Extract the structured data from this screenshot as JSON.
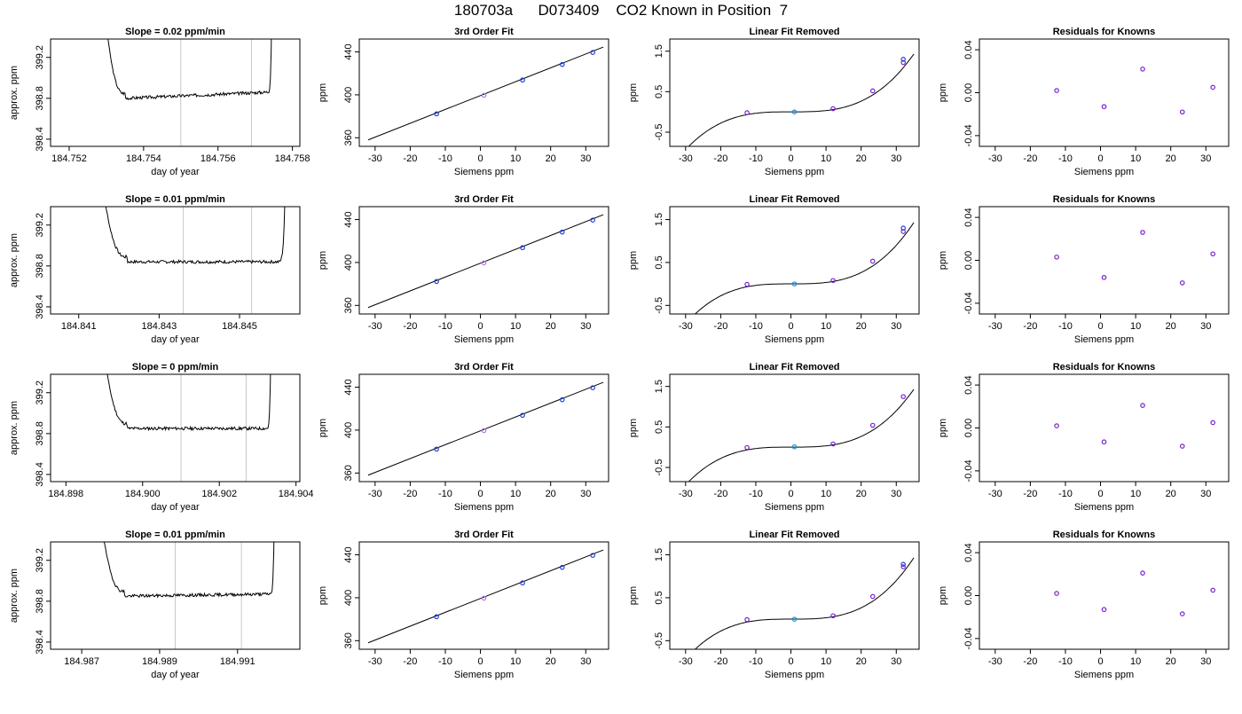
{
  "page": {
    "title": "180703a      D073409    CO2 Known in Position  7"
  },
  "style": {
    "line_color": "#000000",
    "gray_line_color": "#c8c8c8",
    "point_blue": "#1f3fd6",
    "point_purple": "#7a1fd0",
    "point_cyan": "#1f8fd6",
    "point_violet": "#b07ae0"
  },
  "chart_data": [
    {
      "type": "line",
      "title": "Slope =  0.02  ppm/min",
      "xlabel": "day of year",
      "ylabel": "approx. ppm",
      "xlim": [
        184.7515,
        184.7582
      ],
      "ylim": [
        398.33,
        399.38
      ],
      "xticks": [
        "184.752",
        "184.754",
        "184.756",
        "184.758"
      ],
      "xtick_values": [
        184.752,
        184.754,
        184.756,
        184.758
      ],
      "yticks": [
        "398.4",
        "398.8",
        "399.2"
      ],
      "ytick_values": [
        398.4,
        398.8,
        399.2
      ],
      "trace": {
        "x_start": 184.7529,
        "x_end": 184.75745,
        "flat_start": 184.7535,
        "flat_end": 184.7573,
        "y_start": 398.8,
        "y_end": 398.86,
        "seed": 3
      },
      "vlines": [
        184.755,
        184.7569
      ]
    },
    {
      "type": "scatter",
      "title": "3rd Order Fit",
      "xlabel": "Siemens ppm",
      "ylabel": "ppm",
      "xlim": [
        -34.5,
        36.5
      ],
      "ylim": [
        352,
        452
      ],
      "xticks": [
        "-30",
        "-20",
        "-10",
        "0",
        "10",
        "20",
        "30"
      ],
      "xtick_values": [
        -30,
        -20,
        -10,
        0,
        10,
        20,
        30
      ],
      "yticks": [
        "360",
        "400",
        "440"
      ],
      "ytick_values": [
        360,
        400,
        440
      ],
      "line": [
        [
          -32,
          358
        ],
        [
          35,
          444.5
        ]
      ],
      "points": [
        {
          "x": -12.5,
          "y": 382.3,
          "color": "blue"
        },
        {
          "x": 1.0,
          "y": 399.6,
          "color": "violet"
        },
        {
          "x": 12.0,
          "y": 413.8,
          "color": "blue"
        },
        {
          "x": 23.3,
          "y": 428.3,
          "color": "blue"
        },
        {
          "x": 32.0,
          "y": 439.5,
          "color": "blue"
        }
      ]
    },
    {
      "type": "scatter",
      "title": "Linear Fit Removed",
      "xlabel": "Siemens ppm",
      "ylabel": "ppm",
      "xlim": [
        -34.5,
        36.5
      ],
      "ylim": [
        -0.85,
        1.8
      ],
      "xticks": [
        "-30",
        "-20",
        "-10",
        "0",
        "10",
        "20",
        "30"
      ],
      "xtick_values": [
        -30,
        -20,
        -10,
        0,
        10,
        20,
        30
      ],
      "yticks": [
        "-0.5",
        "0.5",
        "1.5"
      ],
      "ytick_values": [
        -0.5,
        0.5,
        1.5
      ],
      "curve": {
        "x_from": -32,
        "x_to": 35,
        "coef": [
          0.002,
          0.0045,
          -2e-05,
          3.39e-05
        ]
      },
      "points": [
        {
          "x": -12.5,
          "y": -0.02,
          "color": "purple"
        },
        {
          "x": 1.0,
          "y": 0.0,
          "color": "cyan"
        },
        {
          "x": 12.0,
          "y": 0.08,
          "color": "purple"
        },
        {
          "x": 23.3,
          "y": 0.52,
          "color": "purple"
        },
        {
          "x": 32.0,
          "y": 1.22,
          "color": "purple"
        },
        {
          "x": 32.0,
          "y": 1.3,
          "color": "blue"
        }
      ]
    },
    {
      "type": "scatter",
      "title": "Residuals for Knowns",
      "xlabel": "Siemens ppm",
      "ylabel": "ppm",
      "xlim": [
        -34.5,
        36.5
      ],
      "ylim": [
        -0.05,
        0.05
      ],
      "xticks": [
        "-30",
        "-20",
        "-10",
        "0",
        "10",
        "20",
        "30"
      ],
      "xtick_values": [
        -30,
        -20,
        -10,
        0,
        10,
        20,
        30
      ],
      "yticks": [
        "-0.04",
        "0.00",
        "0.04"
      ],
      "ytick_values": [
        -0.04,
        0.0,
        0.04
      ],
      "points": [
        {
          "x": -12.5,
          "y": 0.002,
          "color": "purple"
        },
        {
          "x": 1.0,
          "y": -0.013,
          "color": "purple"
        },
        {
          "x": 12.0,
          "y": 0.022,
          "color": "purple"
        },
        {
          "x": 23.3,
          "y": -0.018,
          "color": "purple"
        },
        {
          "x": 32.0,
          "y": 0.005,
          "color": "purple"
        }
      ]
    },
    {
      "type": "line",
      "title": "Slope =  0.01  ppm/min",
      "xlabel": "day of year",
      "ylabel": "approx. ppm",
      "xlim": [
        184.8403,
        184.8465
      ],
      "ylim": [
        398.33,
        399.38
      ],
      "xticks": [
        "184.841",
        "184.843",
        "184.845"
      ],
      "xtick_values": [
        184.841,
        184.843,
        184.845
      ],
      "yticks": [
        "398.4",
        "398.8",
        "399.2"
      ],
      "ytick_values": [
        398.4,
        398.8,
        399.2
      ],
      "trace": {
        "x_start": 184.8415,
        "x_end": 184.84615,
        "flat_start": 184.8422,
        "flat_end": 184.8459,
        "y_start": 398.84,
        "y_end": 398.84,
        "seed": 7
      },
      "vlines": [
        184.8436,
        184.8453
      ]
    },
    {
      "type": "scatter",
      "title": "3rd Order Fit",
      "xlabel": "Siemens ppm",
      "ylabel": "ppm",
      "xlim": [
        -34.5,
        36.5
      ],
      "ylim": [
        352,
        452
      ],
      "xticks": [
        "-30",
        "-20",
        "-10",
        "0",
        "10",
        "20",
        "30"
      ],
      "xtick_values": [
        -30,
        -20,
        -10,
        0,
        10,
        20,
        30
      ],
      "yticks": [
        "360",
        "400",
        "440"
      ],
      "ytick_values": [
        360,
        400,
        440
      ],
      "line": [
        [
          -32,
          358
        ],
        [
          35,
          444.5
        ]
      ],
      "points": [
        {
          "x": -12.5,
          "y": 382.3,
          "color": "blue"
        },
        {
          "x": 1.0,
          "y": 399.6,
          "color": "violet"
        },
        {
          "x": 12.0,
          "y": 413.8,
          "color": "blue"
        },
        {
          "x": 23.3,
          "y": 428.3,
          "color": "blue"
        },
        {
          "x": 32.0,
          "y": 439.5,
          "color": "blue"
        }
      ]
    },
    {
      "type": "scatter",
      "title": "Linear Fit Removed",
      "xlabel": "Siemens ppm",
      "ylabel": "ppm",
      "xlim": [
        -34.5,
        36.5
      ],
      "ylim": [
        -0.7,
        1.8
      ],
      "xticks": [
        "-30",
        "-20",
        "-10",
        "0",
        "10",
        "20",
        "30"
      ],
      "xtick_values": [
        -30,
        -20,
        -10,
        0,
        10,
        20,
        30
      ],
      "yticks": [
        "-0.5",
        "0.5",
        "1.5"
      ],
      "ytick_values": [
        -0.5,
        0.5,
        1.5
      ],
      "curve": {
        "x_from": -32,
        "x_to": 35,
        "coef": [
          0.002,
          0.0045,
          -2e-05,
          3.39e-05
        ]
      },
      "points": [
        {
          "x": -12.5,
          "y": -0.01,
          "color": "purple"
        },
        {
          "x": 1.0,
          "y": 0.0,
          "color": "cyan"
        },
        {
          "x": 12.0,
          "y": 0.08,
          "color": "purple"
        },
        {
          "x": 23.3,
          "y": 0.53,
          "color": "purple"
        },
        {
          "x": 32.0,
          "y": 1.22,
          "color": "purple"
        },
        {
          "x": 32.0,
          "y": 1.3,
          "color": "blue"
        }
      ]
    },
    {
      "type": "scatter",
      "title": "Residuals for Knowns",
      "xlabel": "Siemens ppm",
      "ylabel": "ppm",
      "xlim": [
        -34.5,
        36.5
      ],
      "ylim": [
        -0.05,
        0.05
      ],
      "xticks": [
        "-30",
        "-20",
        "-10",
        "0",
        "10",
        "20",
        "30"
      ],
      "xtick_values": [
        -30,
        -20,
        -10,
        0,
        10,
        20,
        30
      ],
      "yticks": [
        "-0.04",
        "0.00",
        "0.04"
      ],
      "ytick_values": [
        -0.04,
        0.0,
        0.04
      ],
      "points": [
        {
          "x": -12.5,
          "y": 0.003,
          "color": "purple"
        },
        {
          "x": 1.0,
          "y": -0.016,
          "color": "purple"
        },
        {
          "x": 12.0,
          "y": 0.026,
          "color": "purple"
        },
        {
          "x": 23.3,
          "y": -0.021,
          "color": "purple"
        },
        {
          "x": 32.0,
          "y": 0.006,
          "color": "purple"
        }
      ]
    },
    {
      "type": "line",
      "title": "Slope =  0  ppm/min",
      "xlabel": "day of year",
      "ylabel": "approx. ppm",
      "xlim": [
        184.8976,
        184.9041
      ],
      "ylim": [
        398.33,
        399.38
      ],
      "xticks": [
        "184.898",
        "184.900",
        "184.902",
        "184.904"
      ],
      "xtick_values": [
        184.898,
        184.9,
        184.902,
        184.904
      ],
      "yticks": [
        "398.4",
        "398.8",
        "399.2"
      ],
      "ytick_values": [
        398.4,
        398.8,
        399.2
      ],
      "trace": {
        "x_start": 184.8989,
        "x_end": 184.90335,
        "flat_start": 184.8996,
        "flat_end": 184.9032,
        "y_start": 398.85,
        "y_end": 398.85,
        "seed": 11
      },
      "vlines": [
        184.901,
        184.9027
      ]
    },
    {
      "type": "scatter",
      "title": "3rd Order Fit",
      "xlabel": "Siemens ppm",
      "ylabel": "ppm",
      "xlim": [
        -34.5,
        36.5
      ],
      "ylim": [
        352,
        452
      ],
      "xticks": [
        "-30",
        "-20",
        "-10",
        "0",
        "10",
        "20",
        "30"
      ],
      "xtick_values": [
        -30,
        -20,
        -10,
        0,
        10,
        20,
        30
      ],
      "yticks": [
        "360",
        "400",
        "440"
      ],
      "ytick_values": [
        360,
        400,
        440
      ],
      "line": [
        [
          -32,
          358
        ],
        [
          35,
          444.5
        ]
      ],
      "points": [
        {
          "x": -12.5,
          "y": 382.3,
          "color": "blue"
        },
        {
          "x": 1.0,
          "y": 399.6,
          "color": "violet"
        },
        {
          "x": 12.0,
          "y": 413.8,
          "color": "blue"
        },
        {
          "x": 23.3,
          "y": 428.3,
          "color": "blue"
        },
        {
          "x": 32.0,
          "y": 439.5,
          "color": "blue"
        }
      ]
    },
    {
      "type": "scatter",
      "title": "Linear Fit Removed",
      "xlabel": "Siemens ppm",
      "ylabel": "ppm",
      "xlim": [
        -34.5,
        36.5
      ],
      "ylim": [
        -0.85,
        1.8
      ],
      "xticks": [
        "-30",
        "-20",
        "-10",
        "0",
        "10",
        "20",
        "30"
      ],
      "xtick_values": [
        -30,
        -20,
        -10,
        0,
        10,
        20,
        30
      ],
      "yticks": [
        "-0.5",
        "0.5",
        "1.5"
      ],
      "ytick_values": [
        -0.5,
        0.5,
        1.5
      ],
      "curve": {
        "x_from": -32,
        "x_to": 35,
        "coef": [
          0.002,
          0.0045,
          -2e-05,
          3.39e-05
        ]
      },
      "points": [
        {
          "x": -12.5,
          "y": -0.01,
          "color": "purple"
        },
        {
          "x": 1.0,
          "y": 0.01,
          "color": "cyan"
        },
        {
          "x": 12.0,
          "y": 0.08,
          "color": "purple"
        },
        {
          "x": 23.3,
          "y": 0.54,
          "color": "purple"
        },
        {
          "x": 32.0,
          "y": 1.25,
          "color": "purple"
        }
      ]
    },
    {
      "type": "scatter",
      "title": "Residuals for Knowns",
      "xlabel": "Siemens ppm",
      "ylabel": "ppm",
      "xlim": [
        -34.5,
        36.5
      ],
      "ylim": [
        -0.05,
        0.05
      ],
      "xticks": [
        "-30",
        "-20",
        "-10",
        "0",
        "10",
        "20",
        "30"
      ],
      "xtick_values": [
        -30,
        -20,
        -10,
        0,
        10,
        20,
        30
      ],
      "yticks": [
        "-0.04",
        "0.00",
        "0.04"
      ],
      "ytick_values": [
        -0.04,
        0.0,
        0.04
      ],
      "points": [
        {
          "x": -12.5,
          "y": 0.002,
          "color": "purple"
        },
        {
          "x": 1.0,
          "y": -0.013,
          "color": "purple"
        },
        {
          "x": 12.0,
          "y": 0.021,
          "color": "purple"
        },
        {
          "x": 23.3,
          "y": -0.017,
          "color": "purple"
        },
        {
          "x": 32.0,
          "y": 0.005,
          "color": "purple"
        }
      ]
    },
    {
      "type": "line",
      "title": "Slope =  0.01  ppm/min",
      "xlabel": "day of year",
      "ylabel": "approx. ppm",
      "xlim": [
        184.9862,
        184.9926
      ],
      "ylim": [
        398.33,
        399.38
      ],
      "xticks": [
        "184.987",
        "184.989",
        "184.991"
      ],
      "xtick_values": [
        184.987,
        184.989,
        184.991
      ],
      "yticks": [
        "398.4",
        "398.8",
        "399.2"
      ],
      "ytick_values": [
        398.4,
        398.8,
        399.2
      ],
      "trace": {
        "x_start": 184.9874,
        "x_end": 184.99195,
        "flat_start": 184.9881,
        "flat_end": 184.9918,
        "y_start": 398.85,
        "y_end": 398.87,
        "seed": 19
      },
      "vlines": [
        184.9894,
        184.9911
      ]
    },
    {
      "type": "scatter",
      "title": "3rd Order Fit",
      "xlabel": "Siemens ppm",
      "ylabel": "ppm",
      "xlim": [
        -34.5,
        36.5
      ],
      "ylim": [
        352,
        452
      ],
      "xticks": [
        "-30",
        "-20",
        "-10",
        "0",
        "10",
        "20",
        "30"
      ],
      "xtick_values": [
        -30,
        -20,
        -10,
        0,
        10,
        20,
        30
      ],
      "yticks": [
        "360",
        "400",
        "440"
      ],
      "ytick_values": [
        360,
        400,
        440
      ],
      "line": [
        [
          -32,
          358
        ],
        [
          35,
          444.5
        ]
      ],
      "points": [
        {
          "x": -12.5,
          "y": 382.3,
          "color": "blue"
        },
        {
          "x": 1.0,
          "y": 399.6,
          "color": "violet"
        },
        {
          "x": 12.0,
          "y": 413.8,
          "color": "blue"
        },
        {
          "x": 23.3,
          "y": 428.3,
          "color": "blue"
        },
        {
          "x": 32.0,
          "y": 439.5,
          "color": "blue"
        }
      ]
    },
    {
      "type": "scatter",
      "title": "Linear Fit Removed",
      "xlabel": "Siemens ppm",
      "ylabel": "ppm",
      "xlim": [
        -34.5,
        36.5
      ],
      "ylim": [
        -0.7,
        1.8
      ],
      "xticks": [
        "-30",
        "-20",
        "-10",
        "0",
        "10",
        "20",
        "30"
      ],
      "xtick_values": [
        -30,
        -20,
        -10,
        0,
        10,
        20,
        30
      ],
      "yticks": [
        "-0.5",
        "0.5",
        "1.5"
      ],
      "ytick_values": [
        -0.5,
        0.5,
        1.5
      ],
      "curve": {
        "x_from": -32,
        "x_to": 35,
        "coef": [
          0.002,
          0.0045,
          -2e-05,
          3.39e-05
        ]
      },
      "points": [
        {
          "x": -12.5,
          "y": -0.01,
          "color": "purple"
        },
        {
          "x": 1.0,
          "y": 0.0,
          "color": "cyan"
        },
        {
          "x": 12.0,
          "y": 0.08,
          "color": "purple"
        },
        {
          "x": 23.3,
          "y": 0.53,
          "color": "purple"
        },
        {
          "x": 32.0,
          "y": 1.22,
          "color": "purple"
        },
        {
          "x": 32.0,
          "y": 1.28,
          "color": "blue"
        }
      ]
    },
    {
      "type": "scatter",
      "title": "Residuals for Knowns",
      "xlabel": "Siemens ppm",
      "ylabel": "ppm",
      "xlim": [
        -34.5,
        36.5
      ],
      "ylim": [
        -0.05,
        0.05
      ],
      "xticks": [
        "-30",
        "-20",
        "-10",
        "0",
        "10",
        "20",
        "30"
      ],
      "xtick_values": [
        -30,
        -20,
        -10,
        0,
        10,
        20,
        30
      ],
      "yticks": [
        "-0.04",
        "0.00",
        "0.04"
      ],
      "ytick_values": [
        -0.04,
        0.0,
        0.04
      ],
      "points": [
        {
          "x": -12.5,
          "y": 0.002,
          "color": "purple"
        },
        {
          "x": 1.0,
          "y": -0.013,
          "color": "purple"
        },
        {
          "x": 12.0,
          "y": 0.021,
          "color": "purple"
        },
        {
          "x": 23.3,
          "y": -0.017,
          "color": "purple"
        },
        {
          "x": 32.0,
          "y": 0.005,
          "color": "purple"
        }
      ]
    }
  ]
}
